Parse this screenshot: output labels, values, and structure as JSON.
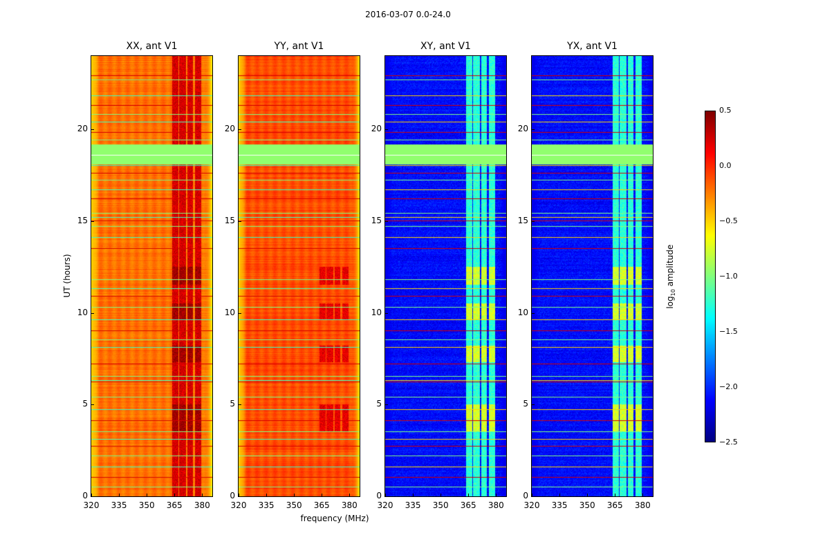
{
  "chart_data": {
    "type": "heatmap",
    "title": "2016-03-07 0.0-24.0",
    "xlabel": "frequency (MHz)",
    "ylabel": "UT (hours)",
    "xlim": [
      320,
      385.5
    ],
    "ylim": [
      0,
      24
    ],
    "xticks": [
      "320",
      "335",
      "350",
      "365",
      "380"
    ],
    "yticks": [
      "0",
      "5",
      "10",
      "15",
      "20"
    ],
    "colorbar": {
      "label": "log10 amplitude",
      "label_main": "log",
      "label_sub": "10",
      "label_rest": " amplitude",
      "range": [
        -2.5,
        0.5
      ],
      "ticks": [
        "0.5",
        "0.0",
        "−0.5",
        "−1.0",
        "−1.5",
        "−2.0",
        "−2.5"
      ],
      "colormap": "jet"
    },
    "panels": [
      {
        "title": "XX, ant V1",
        "base_level": -0.2,
        "edge_level": -0.55,
        "channel_level": 0.25,
        "type": "auto"
      },
      {
        "title": "YY, ant V1",
        "base_level": -0.1,
        "edge_level": -0.55,
        "channel_level": 0.05,
        "type": "auto"
      },
      {
        "title": "XY, ant V1",
        "base_level": -2.1,
        "edge_level": -2.2,
        "channel_level": -1.25,
        "type": "cross"
      },
      {
        "title": "YX, ant V1",
        "base_level": -2.1,
        "edge_level": -2.2,
        "channel_level": -1.25,
        "type": "cross"
      }
    ],
    "bright_channels_mhz": [
      [
        363.5,
        367
      ],
      [
        367.5,
        371
      ],
      [
        372,
        375
      ],
      [
        376,
        379.5
      ]
    ],
    "flagged_hours": [
      18.05,
      19.15
    ],
    "flagged_level": -0.95,
    "rfi_line_hours": [
      0.5,
      1.0,
      1.6,
      2.2,
      2.7,
      3.1,
      3.5,
      4.1,
      4.7,
      5.4,
      6.2,
      6.3,
      6.5,
      7.2,
      8.1,
      8.5,
      9.0,
      9.6,
      10.3,
      10.9,
      11.3,
      11.8,
      13.5,
      14.1,
      14.7,
      15.0,
      15.2,
      15.4,
      16.2,
      16.7,
      17.2,
      17.6,
      18.0,
      19.4,
      19.8,
      20.4,
      20.8,
      21.3,
      21.8,
      22.7,
      22.9
    ],
    "strong_channel_hours": [
      [
        3.5,
        5.0
      ],
      [
        9.6,
        10.5
      ],
      [
        11.5,
        12.5
      ],
      [
        7.3,
        8.2
      ]
    ]
  }
}
